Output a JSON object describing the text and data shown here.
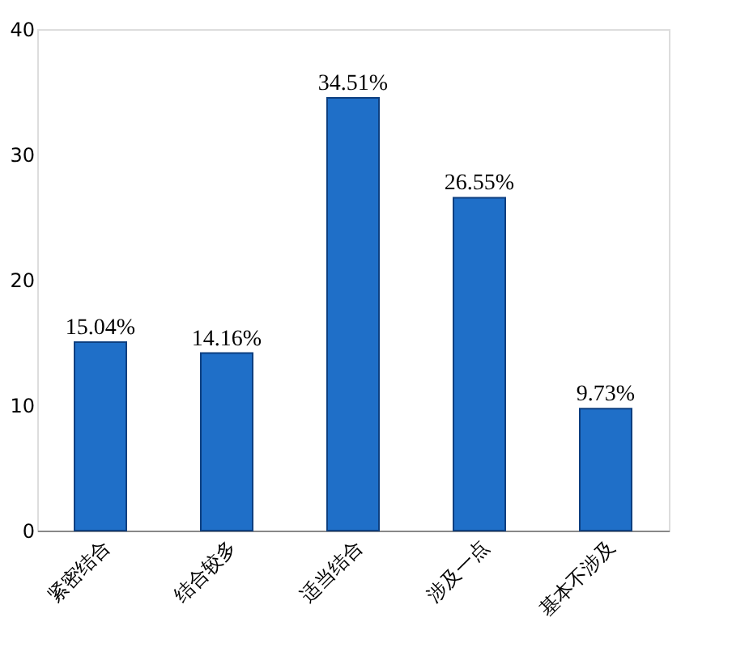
{
  "chart_data": {
    "type": "bar",
    "categories": [
      "紧密结合",
      "结合较多",
      "适当结合",
      "涉及一点",
      "基本不涉及"
    ],
    "values": [
      15.04,
      14.16,
      34.51,
      26.55,
      9.73
    ],
    "value_labels": [
      "15.04%",
      "14.16%",
      "34.51%",
      "26.55%",
      "9.73%"
    ],
    "color": "#1f6fc8",
    "ylim": [
      0,
      40
    ],
    "yticks": [
      0,
      10,
      20,
      30,
      40
    ],
    "grid": false
  }
}
